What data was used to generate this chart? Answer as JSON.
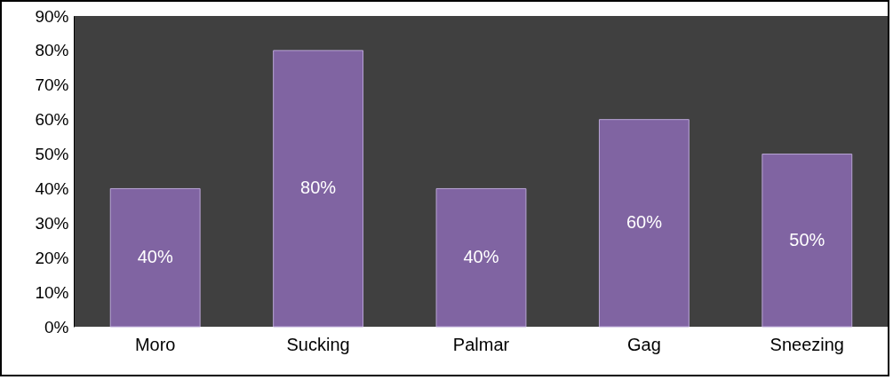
{
  "chart_data": {
    "type": "bar",
    "categories": [
      "Moro",
      "Sucking",
      "Palmar",
      "Gag",
      "Sneezing"
    ],
    "values": [
      40,
      80,
      40,
      60,
      50
    ],
    "color": "#8064a2",
    "value_labels": [
      "40%",
      "80%",
      "40%",
      "60%",
      "50%"
    ],
    "ylim": [
      0,
      90
    ],
    "yticks": [
      {
        "value": 0,
        "label": "0%"
      },
      {
        "value": 10,
        "label": "10%"
      },
      {
        "value": 20,
        "label": "20%"
      },
      {
        "value": 30,
        "label": "30%"
      },
      {
        "value": 40,
        "label": "40%"
      },
      {
        "value": 50,
        "label": "50%"
      },
      {
        "value": 60,
        "label": "60%"
      },
      {
        "value": 70,
        "label": "70%"
      },
      {
        "value": 80,
        "label": "80%"
      },
      {
        "value": 90,
        "label": "90%"
      }
    ],
    "grid": false
  }
}
